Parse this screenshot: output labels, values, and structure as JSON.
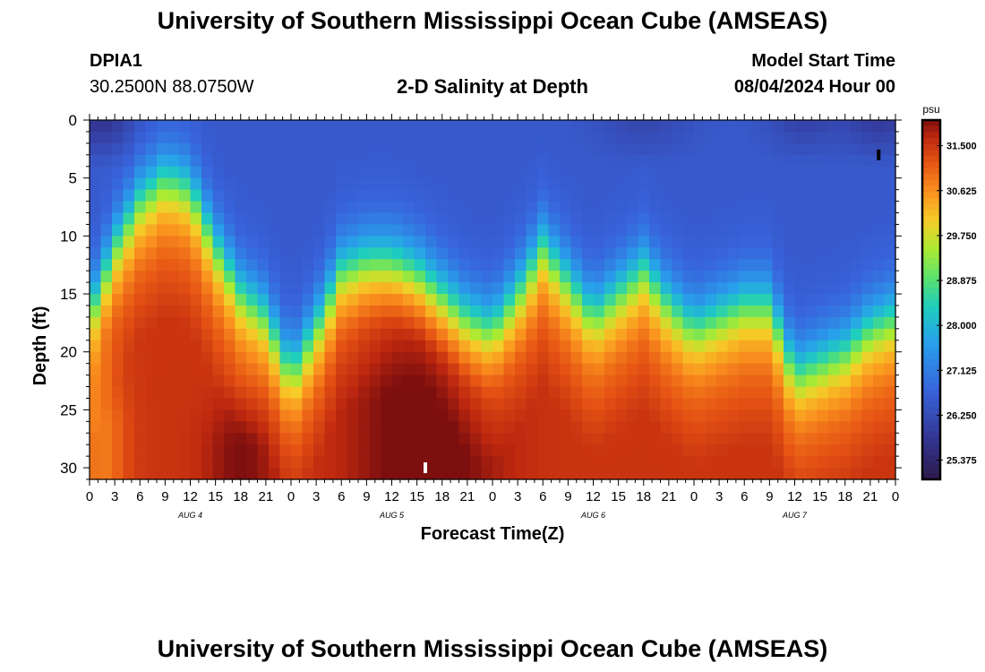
{
  "header": {
    "title_top": "University of Southern Mississippi Ocean Cube (AMSEAS)",
    "station_id": "DPIA1",
    "coords": "30.2500N  88.0750W",
    "plot_title": "2-D Salinity at Depth",
    "model_start_label": "Model Start Time",
    "model_start_value": "08/04/2024 Hour 00",
    "title_bottom": "University of Southern Mississippi Ocean Cube (AMSEAS)"
  },
  "chart_data": {
    "type": "heatmap",
    "title": "2-D Salinity at Depth",
    "xlabel": "Forecast Time(Z)",
    "ylabel": "Depth (ft)",
    "x_tick_labels": [
      "0",
      "3",
      "6",
      "9",
      "12",
      "15",
      "18",
      "21",
      "0",
      "3",
      "6",
      "9",
      "12",
      "15",
      "18",
      "21",
      "0",
      "3",
      "6",
      "9",
      "12",
      "15",
      "18",
      "21",
      "0",
      "3",
      "6",
      "9",
      "12",
      "15",
      "18",
      "21",
      "0"
    ],
    "day_labels": [
      "AUG 4",
      "AUG 5",
      "AUG 6",
      "AUG 7"
    ],
    "xlim_hours": [
      0,
      96
    ],
    "y_ticks": [
      0,
      5,
      10,
      15,
      20,
      25,
      30
    ],
    "ylim_ft": [
      0,
      31
    ],
    "colorbar": {
      "units": "psu",
      "ticks": [
        "31.500",
        "30.625",
        "29.750",
        "28.875",
        "28.000",
        "27.125",
        "26.250",
        "25.375"
      ],
      "range": [
        25.0,
        32.0
      ]
    },
    "halocline_depth_ft": [
      [
        0,
        17
      ],
      [
        3,
        11
      ],
      [
        6,
        7
      ],
      [
        9,
        5
      ],
      [
        12,
        6
      ],
      [
        15,
        11
      ],
      [
        18,
        15
      ],
      [
        21,
        17
      ],
      [
        24,
        22
      ],
      [
        27,
        18
      ],
      [
        30,
        13
      ],
      [
        33,
        12
      ],
      [
        36,
        12
      ],
      [
        39,
        13
      ],
      [
        42,
        15
      ],
      [
        45,
        17
      ],
      [
        48,
        18
      ],
      [
        51,
        15
      ],
      [
        54,
        11
      ],
      [
        57,
        14
      ],
      [
        60,
        17
      ],
      [
        63,
        15
      ],
      [
        66,
        13
      ],
      [
        69,
        16
      ],
      [
        72,
        18
      ],
      [
        75,
        17
      ],
      [
        78,
        16
      ],
      [
        81,
        16
      ],
      [
        84,
        22
      ],
      [
        87,
        21
      ],
      [
        90,
        20
      ],
      [
        93,
        18
      ],
      [
        96,
        17
      ]
    ],
    "markers": [
      {
        "hour": 40.0,
        "depth_ft": 30,
        "color": "#ffffff"
      },
      {
        "hour": 94.0,
        "depth_ft": 3,
        "color": "#000000"
      }
    ],
    "colors": {
      "surface": "#2f5fd8",
      "deep": "#7a1010",
      "text": "#000000",
      "background": "#ffffff"
    }
  }
}
